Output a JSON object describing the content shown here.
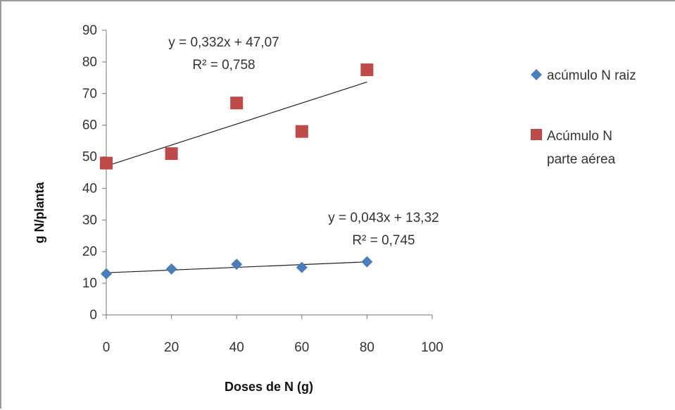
{
  "chart_data": {
    "type": "scatter",
    "title": "",
    "xlabel": "Doses de N (g)",
    "ylabel": "g N/planta",
    "xlim": [
      0,
      100
    ],
    "ylim": [
      0,
      90
    ],
    "x_ticks": [
      "0",
      "20",
      "40",
      "60",
      "80",
      "100"
    ],
    "y_ticks": [
      "0",
      "10",
      "20",
      "30",
      "40",
      "50",
      "60",
      "70",
      "80",
      "90"
    ],
    "grid": false,
    "legend_position": "right",
    "series": [
      {
        "name": "acúmulo N raiz",
        "marker": "diamond",
        "color": "#4a7ebb",
        "x": [
          0,
          20,
          40,
          60,
          80
        ],
        "y": [
          13.0,
          14.5,
          16.0,
          15.0,
          16.8
        ],
        "trendline": {
          "slope": 0.043,
          "intercept": 13.32,
          "equation": "y = 0,043x + 13,32",
          "r2": "R² = 0,745"
        }
      },
      {
        "name": "Acúmulo N parte aérea",
        "legend_lines": [
          "Acúmulo N",
          "parte aérea"
        ],
        "marker": "square",
        "color": "#be4b48",
        "x": [
          0,
          20,
          40,
          60,
          80
        ],
        "y": [
          48.0,
          51.0,
          67.0,
          58.0,
          77.5
        ],
        "trendline": {
          "slope": 0.332,
          "intercept": 47.07,
          "equation": "y = 0,332x + 47,07",
          "r2": "R² = 0,758"
        }
      }
    ]
  }
}
